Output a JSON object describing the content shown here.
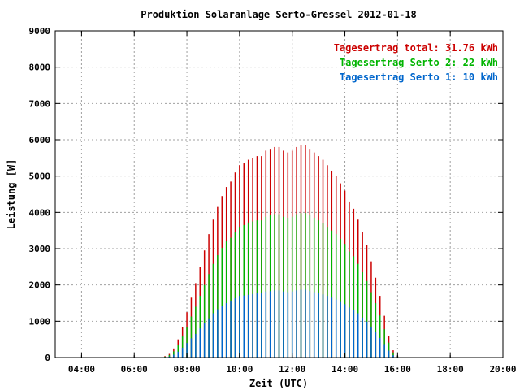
{
  "chart_data": {
    "type": "bar",
    "title": "Produktion Solaranlage Serto-Gressel 2012-01-18",
    "xlabel": "Zeit (UTC)",
    "ylabel": "Leistung [W]",
    "xlim": [
      "03:00",
      "20:00"
    ],
    "ylim": [
      0,
      9000
    ],
    "x_ticks": [
      "04:00",
      "06:00",
      "08:00",
      "10:00",
      "12:00",
      "14:00",
      "16:00",
      "18:00",
      "20:00"
    ],
    "y_ticks": [
      "0",
      "1000",
      "2000",
      "3000",
      "4000",
      "5000",
      "6000",
      "7000",
      "8000",
      "9000"
    ],
    "grid": true,
    "legend_position": "top-right",
    "colors": {
      "total": "#cc0000",
      "serto2": "#00b400",
      "serto1": "#0066cc"
    },
    "legend": [
      {
        "label": "Tagesertrag total: 31.76 kWh",
        "color": "#cc0000"
      },
      {
        "label": "Tagesertrag Serto 2: 22 kWh",
        "color": "#00b400"
      },
      {
        "label": "Tagesertrag Serto 1: 10 kWh",
        "color": "#0066cc"
      }
    ],
    "x": [
      "07:00",
      "07:10",
      "07:20",
      "07:30",
      "07:40",
      "07:50",
      "08:00",
      "08:10",
      "08:20",
      "08:30",
      "08:40",
      "08:50",
      "09:00",
      "09:10",
      "09:20",
      "09:30",
      "09:40",
      "09:50",
      "10:00",
      "10:10",
      "10:20",
      "10:30",
      "10:40",
      "10:50",
      "11:00",
      "11:10",
      "11:20",
      "11:30",
      "11:40",
      "11:50",
      "12:00",
      "12:10",
      "12:20",
      "12:30",
      "12:40",
      "12:50",
      "13:00",
      "13:10",
      "13:20",
      "13:30",
      "13:40",
      "13:50",
      "14:00",
      "14:10",
      "14:20",
      "14:30",
      "14:40",
      "14:50",
      "15:00",
      "15:10",
      "15:20",
      "15:30",
      "15:40",
      "15:50",
      "16:00"
    ],
    "series": [
      {
        "key": "total",
        "values": [
          10,
          40,
          100,
          250,
          500,
          850,
          1250,
          1650,
          2050,
          2500,
          2950,
          3400,
          3800,
          4150,
          4450,
          4700,
          4850,
          5100,
          5300,
          5350,
          5450,
          5500,
          5550,
          5550,
          5700,
          5750,
          5800,
          5800,
          5700,
          5650,
          5700,
          5800,
          5850,
          5850,
          5750,
          5650,
          5550,
          5450,
          5300,
          5150,
          5000,
          4800,
          4600,
          4300,
          4100,
          3800,
          3450,
          3100,
          2650,
          2200,
          1700,
          1150,
          600,
          200,
          50
        ]
      },
      {
        "key": "serto2",
        "values": [
          5,
          25,
          70,
          170,
          340,
          580,
          850,
          1130,
          1400,
          1700,
          2000,
          2300,
          2580,
          2820,
          3020,
          3200,
          3300,
          3470,
          3600,
          3650,
          3720,
          3750,
          3780,
          3780,
          3880,
          3920,
          3950,
          3950,
          3880,
          3850,
          3880,
          3950,
          3980,
          3980,
          3920,
          3850,
          3780,
          3710,
          3600,
          3500,
          3400,
          3270,
          3130,
          2920,
          2790,
          2580,
          2350,
          2110,
          1800,
          1500,
          1160,
          780,
          410,
          140,
          35
        ]
      },
      {
        "key": "serto1",
        "values": [
          3,
          15,
          30,
          80,
          160,
          270,
          400,
          530,
          650,
          800,
          940,
          1080,
          1220,
          1330,
          1430,
          1500,
          1550,
          1630,
          1700,
          1710,
          1730,
          1750,
          1770,
          1770,
          1820,
          1830,
          1850,
          1850,
          1820,
          1800,
          1820,
          1850,
          1870,
          1870,
          1830,
          1800,
          1770,
          1740,
          1700,
          1650,
          1600,
          1530,
          1470,
          1380,
          1310,
          1220,
          1100,
          990,
          850,
          700,
          540,
          370,
          190,
          65,
          15
        ]
      }
    ]
  }
}
